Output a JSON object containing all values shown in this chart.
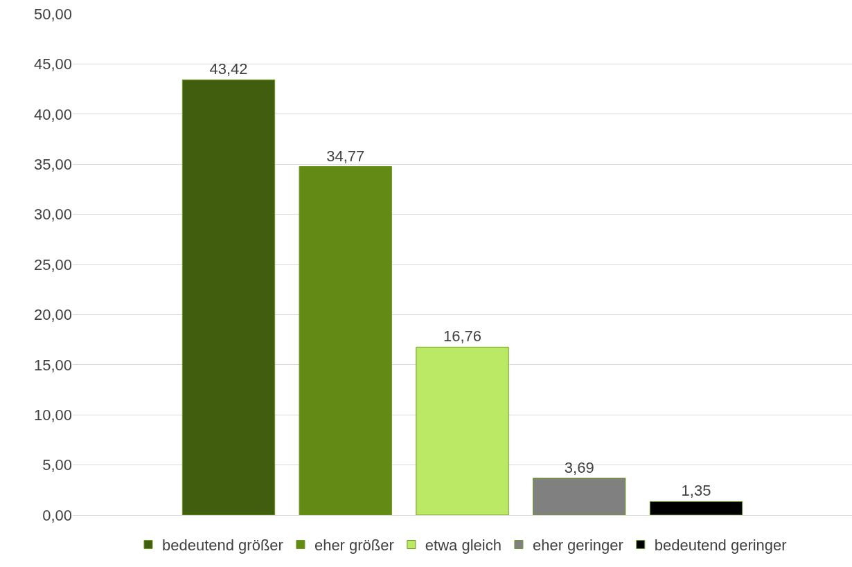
{
  "chart_data": {
    "type": "bar",
    "categories": [
      null
    ],
    "series": [
      {
        "name": "bedeutend größer",
        "color": "#405e0e",
        "values": [
          43.42
        ],
        "value_labels": [
          "43,42"
        ]
      },
      {
        "name": "eher größer",
        "color": "#638a14",
        "values": [
          34.77
        ],
        "value_labels": [
          "34,77"
        ]
      },
      {
        "name": "etwa gleich",
        "color": "#bbe865",
        "values": [
          16.76
        ],
        "value_labels": [
          "16,76"
        ]
      },
      {
        "name": "eher geringer",
        "color": "#808080",
        "values": [
          3.69
        ],
        "value_labels": [
          "3,69"
        ]
      },
      {
        "name": "bedeutend geringer",
        "color": "#000000",
        "values": [
          1.35
        ],
        "value_labels": [
          "1,35"
        ]
      }
    ],
    "ylim": [
      0,
      50
    ],
    "yticks": [
      {
        "value": 0,
        "label": "0,00"
      },
      {
        "value": 5,
        "label": "5,00"
      },
      {
        "value": 10,
        "label": "10,00"
      },
      {
        "value": 15,
        "label": "15,00"
      },
      {
        "value": 20,
        "label": "20,00"
      },
      {
        "value": 25,
        "label": "25,00"
      },
      {
        "value": 30,
        "label": "30,00"
      },
      {
        "value": 35,
        "label": "35,00"
      },
      {
        "value": 40,
        "label": "40,00"
      },
      {
        "value": 45,
        "label": "45,00"
      },
      {
        "value": 50,
        "label": "50,00"
      }
    ],
    "grid": "y",
    "legend": "bottom"
  }
}
